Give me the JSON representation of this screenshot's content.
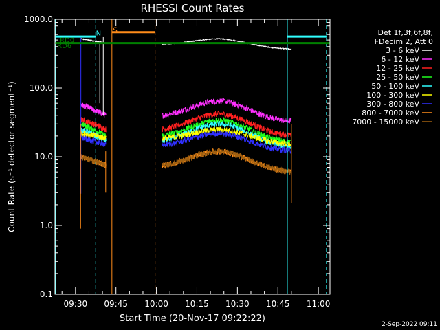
{
  "chart_data": {
    "type": "line",
    "title": "RHESSI Count Rates",
    "xlabel": "Start Time (20-Nov-17 09:22:22)",
    "ylabel": "Count Rate (s⁻¹ detector segment⁻¹)",
    "yscale": "log",
    "ylim": [
      0.1,
      1000
    ],
    "xlim_minutes": [
      22.4,
      124.3
    ],
    "y_ticks": [
      {
        "value": 0.1,
        "label": "0.1"
      },
      {
        "value": 1,
        "label": "1.0"
      },
      {
        "value": 10,
        "label": "10.0"
      },
      {
        "value": 100,
        "label": "100.0"
      },
      {
        "value": 1000,
        "label": "1000.0"
      }
    ],
    "x_ticks": [
      {
        "value": 30,
        "label": "09:30"
      },
      {
        "value": 45,
        "label": "09:45"
      },
      {
        "value": 60,
        "label": "10:00"
      },
      {
        "value": 75,
        "label": "10:15"
      },
      {
        "value": 90,
        "label": "10:30"
      },
      {
        "value": 105,
        "label": "10:45"
      },
      {
        "value": 120,
        "label": "11:00"
      }
    ],
    "legend_header": [
      "Det 1f,3f,6f,8f,",
      "FDecim 2, Att 0"
    ],
    "legend_placement": "right",
    "segments_minutes": [
      [
        32.0,
        41.3
      ],
      [
        62.0,
        110.0
      ]
    ],
    "series": [
      {
        "name": "3 - 6 keV",
        "color": "#ffffff",
        "values_start": [
          520,
          450
        ],
        "values_peak": 520,
        "values_end": 500
      },
      {
        "name": "6 - 12 keV",
        "color": "#ff30ff",
        "values_start": [
          57,
          40
        ],
        "values_peak": 65,
        "values_end": 45
      },
      {
        "name": "12 - 25 keV",
        "color": "#ff2020",
        "values_start": [
          35,
          25
        ],
        "values_peak": 42,
        "values_end": 26
      },
      {
        "name": "25 - 50 keV",
        "color": "#20ff20",
        "values_start": [
          30,
          20
        ],
        "values_peak": 34,
        "values_end": 21
      },
      {
        "name": "50 - 100 keV",
        "color": "#30ffff",
        "values_start": [
          25,
          17
        ],
        "values_peak": 30,
        "values_end": 17
      },
      {
        "name": "100 - 300 keV",
        "color": "#ffff00",
        "values_start": [
          22,
          19
        ],
        "values_peak": 25,
        "values_end": 18
      },
      {
        "name": "300 - 800 keV",
        "color": "#3030ff",
        "values_start": [
          19,
          15
        ],
        "values_peak": 22,
        "values_end": 16
      },
      {
        "name": "800 - 7000 keV",
        "color": "#ff8c1a",
        "values_start": [
          10,
          7.5
        ],
        "values_peak": 12,
        "values_end": 7
      },
      {
        "name": "7000 - 15000 keV",
        "color": "#a06010",
        "values_start": [
          10,
          7.5
        ],
        "values_peak": 12,
        "values_end": 7
      }
    ],
    "annotations": [
      {
        "label": "RD6",
        "color": "#008000"
      },
      {
        "label": "RD0",
        "color": "#008000"
      },
      {
        "label": "N",
        "color": "#30ffff"
      },
      {
        "label": "S",
        "color": "#ff8c1a"
      }
    ],
    "event_lines_minutes": [
      {
        "t": 22.6,
        "color": "#30ffff",
        "style": "solid"
      },
      {
        "t": 37.5,
        "color": "#30ffff",
        "style": "dashed"
      },
      {
        "t": 43.5,
        "color": "#ff8c1a",
        "style": "solid"
      },
      {
        "t": 59.5,
        "color": "#ff8c1a",
        "style": "dashed"
      },
      {
        "t": 108.5,
        "color": "#30ffff",
        "style": "solid"
      },
      {
        "t": 123.0,
        "color": "#30ffff",
        "style": "dashed"
      }
    ],
    "state_bars": [
      {
        "name": "cyan",
        "color": "#30ffff",
        "ranges": [
          [
            22.6,
            37.5
          ],
          [
            108.5,
            123.0
          ]
        ],
        "level": 560
      },
      {
        "name": "orange",
        "color": "#ff8c1a",
        "ranges": [
          [
            43.5,
            59.5
          ]
        ],
        "level": 650
      },
      {
        "name": "green",
        "color": "#008000",
        "ranges": [
          [
            22.4,
            124.3
          ]
        ],
        "level": 450
      }
    ],
    "footer_date": "2-Sep-2022 09:11"
  }
}
